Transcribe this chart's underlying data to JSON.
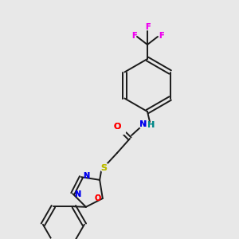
{
  "background_color": "#e8e8e8",
  "bond_color": "#1a1a1a",
  "atom_colors": {
    "F": "#ee00ee",
    "O": "#ff0000",
    "N": "#0000ee",
    "S": "#bbbb00",
    "H": "#008888",
    "C": "#1a1a1a"
  },
  "figsize": [
    3.0,
    3.0
  ],
  "dpi": 100,
  "xlim": [
    0,
    300
  ],
  "ylim": [
    0,
    300
  ]
}
